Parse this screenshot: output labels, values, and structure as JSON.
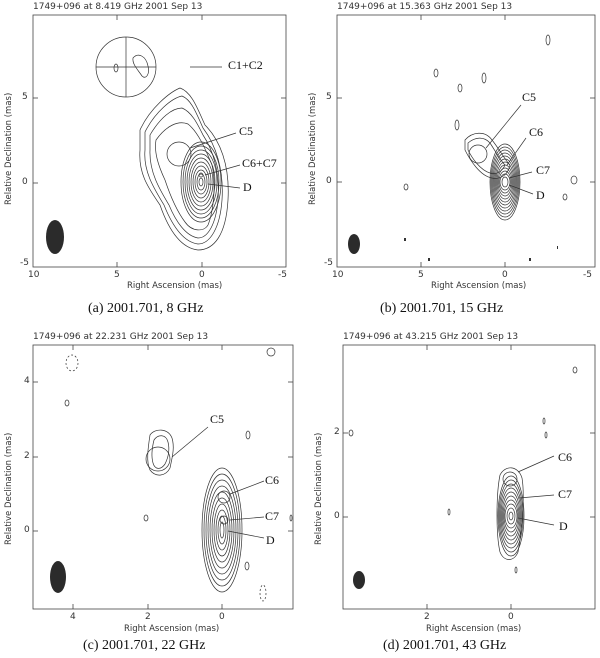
{
  "figure": {
    "panels": [
      {
        "header": "1749+096 at 8.419 GHz 2001 Sep 13",
        "caption": "(a) 2001.701, 8 GHz",
        "ylabel": "Relative Declination  (mas)",
        "xlabel": "Right Ascension  (mas)",
        "xticks": [
          "10",
          "5",
          "0",
          "-5"
        ],
        "yticks": [
          "5",
          "0",
          "-5"
        ],
        "labels": [
          "C1+C2",
          "C5",
          "C6+C7",
          "D"
        ]
      },
      {
        "header": "1749+096 at 15.363 GHz 2001 Sep 13",
        "caption": "(b) 2001.701, 15 GHz",
        "ylabel": "Relative Declination  (mas)",
        "xlabel": "Right Ascension  (mas)",
        "xticks": [
          "10",
          "5",
          "0",
          "-5"
        ],
        "yticks": [
          "5",
          "0",
          "-5"
        ],
        "labels": [
          "C5",
          "C6",
          "C7",
          "D"
        ]
      },
      {
        "header": "1749+096 at 22.231 GHz 2001 Sep 13",
        "caption": "(c) 2001.701, 22 GHz",
        "ylabel": "Relative Declination  (mas)",
        "xlabel": "Right Ascension  (mas)",
        "xticks": [
          "4",
          "2",
          "0"
        ],
        "yticks": [
          "4",
          "2",
          "0"
        ],
        "labels": [
          "C5",
          "C6",
          "C7",
          "D"
        ]
      },
      {
        "header": "1749+096 at 43.215 GHz 2001 Sep 13",
        "caption": "(d) 2001.701, 43 GHz",
        "ylabel": "Relative Declination  (mas)",
        "xlabel": "Right Ascension  (mas)",
        "xticks": [
          "2",
          "0"
        ],
        "yticks": [
          "2",
          "0"
        ],
        "labels": [
          "C6",
          "C7",
          "D"
        ]
      }
    ]
  }
}
